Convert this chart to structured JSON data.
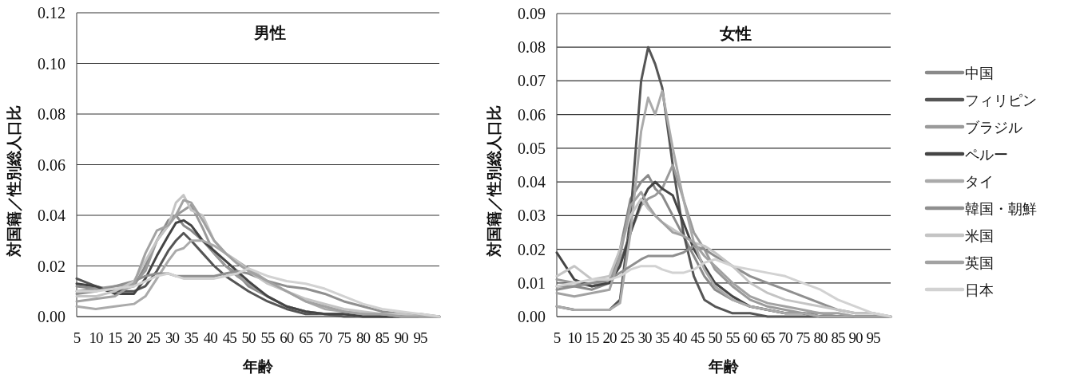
{
  "chart_data": [
    {
      "type": "line",
      "title": "男性",
      "xlabel": "年齢",
      "ylabel": "対国籍／性別総人口比",
      "xlim": [
        5,
        100
      ],
      "xticks": [
        5,
        10,
        15,
        20,
        25,
        30,
        35,
        40,
        45,
        50,
        55,
        60,
        65,
        70,
        75,
        80,
        85,
        90,
        95
      ],
      "ylim": [
        0,
        0.12
      ],
      "yticks": [
        {
          "value": 0,
          "label": "0.00"
        },
        {
          "value": 0.02,
          "label": "0.02"
        },
        {
          "value": 0.04,
          "label": "0.04"
        },
        {
          "value": 0.06,
          "label": "0.06"
        },
        {
          "value": 0.08,
          "label": "0.08"
        },
        {
          "value": 0.1,
          "label": "0.10"
        },
        {
          "value": 0.12,
          "label": "0.12"
        }
      ],
      "grid": "y",
      "legend": false,
      "x": [
        5,
        10,
        15,
        20,
        23,
        26,
        29,
        31,
        33,
        35,
        38,
        41,
        44,
        47,
        50,
        55,
        60,
        65,
        70,
        75,
        80,
        85,
        90,
        95,
        100
      ],
      "series": [
        {
          "color": "#8a8a8a",
          "values": [
            0.012,
            0.011,
            0.01,
            0.012,
            0.02,
            0.03,
            0.038,
            0.04,
            0.036,
            0.034,
            0.03,
            0.025,
            0.02,
            0.017,
            0.012,
            0.008,
            0.004,
            0.002,
            0.001,
            0.001,
            0.001,
            0,
            0,
            0,
            0
          ]
        },
        {
          "color": "#555555",
          "values": [
            0.015,
            0.012,
            0.01,
            0.01,
            0.012,
            0.018,
            0.026,
            0.03,
            0.033,
            0.03,
            0.025,
            0.02,
            0.016,
            0.013,
            0.01,
            0.006,
            0.003,
            0.001,
            0.001,
            0,
            0,
            0,
            0,
            0,
            0
          ]
        },
        {
          "color": "#9a9a9a",
          "values": [
            0.01,
            0.011,
            0.012,
            0.013,
            0.018,
            0.03,
            0.036,
            0.04,
            0.042,
            0.044,
            0.035,
            0.025,
            0.02,
            0.016,
            0.013,
            0.008,
            0.004,
            0.002,
            0.001,
            0.001,
            0,
            0,
            0,
            0,
            0
          ]
        },
        {
          "color": "#444444",
          "values": [
            0.013,
            0.012,
            0.009,
            0.009,
            0.015,
            0.024,
            0.032,
            0.037,
            0.038,
            0.036,
            0.03,
            0.026,
            0.022,
            0.018,
            0.014,
            0.008,
            0.004,
            0.002,
            0.001,
            0.001,
            0,
            0,
            0,
            0,
            0
          ]
        },
        {
          "color": "#aaaaaa",
          "values": [
            0.004,
            0.003,
            0.004,
            0.005,
            0.008,
            0.015,
            0.022,
            0.026,
            0.027,
            0.03,
            0.03,
            0.028,
            0.025,
            0.022,
            0.019,
            0.014,
            0.01,
            0.006,
            0.003,
            0.002,
            0.001,
            0.001,
            0,
            0,
            0
          ]
        },
        {
          "color": "#8f8f8f",
          "values": [
            0.009,
            0.01,
            0.012,
            0.014,
            0.016,
            0.017,
            0.017,
            0.016,
            0.016,
            0.016,
            0.016,
            0.016,
            0.017,
            0.018,
            0.017,
            0.014,
            0.012,
            0.011,
            0.009,
            0.006,
            0.004,
            0.002,
            0.001,
            0.001,
            0
          ]
        },
        {
          "color": "#c4c4c4",
          "values": [
            0.008,
            0.008,
            0.01,
            0.014,
            0.022,
            0.03,
            0.036,
            0.045,
            0.048,
            0.042,
            0.04,
            0.03,
            0.025,
            0.022,
            0.018,
            0.013,
            0.01,
            0.007,
            0.005,
            0.003,
            0.002,
            0.001,
            0.001,
            0,
            0
          ]
        },
        {
          "color": "#a2a2a2",
          "values": [
            0.006,
            0.007,
            0.008,
            0.013,
            0.025,
            0.034,
            0.036,
            0.04,
            0.046,
            0.045,
            0.038,
            0.03,
            0.025,
            0.021,
            0.018,
            0.014,
            0.01,
            0.006,
            0.004,
            0.002,
            0.001,
            0.001,
            0,
            0,
            0
          ]
        },
        {
          "color": "#d2d2d2",
          "values": [
            0.01,
            0.01,
            0.011,
            0.012,
            0.014,
            0.016,
            0.017,
            0.016,
            0.015,
            0.015,
            0.015,
            0.015,
            0.016,
            0.017,
            0.019,
            0.016,
            0.014,
            0.013,
            0.011,
            0.008,
            0.005,
            0.003,
            0.002,
            0.001,
            0
          ]
        }
      ]
    },
    {
      "type": "line",
      "title": "女性",
      "xlabel": "年齢",
      "ylabel": "対国籍／性別総人口比",
      "xlim": [
        5,
        100
      ],
      "xticks": [
        5,
        10,
        15,
        20,
        25,
        30,
        35,
        40,
        45,
        50,
        55,
        60,
        65,
        70,
        75,
        80,
        85,
        90,
        95
      ],
      "ylim": [
        0,
        0.09
      ],
      "yticks": [
        {
          "value": 0,
          "label": "0.00"
        },
        {
          "value": 0.01,
          "label": "0.01"
        },
        {
          "value": 0.02,
          "label": "0.02"
        },
        {
          "value": 0.03,
          "label": "0.03"
        },
        {
          "value": 0.04,
          "label": "0.04"
        },
        {
          "value": 0.05,
          "label": "0.05"
        },
        {
          "value": 0.06,
          "label": "0.06"
        },
        {
          "value": 0.07,
          "label": "0.07"
        },
        {
          "value": 0.08,
          "label": "0.08"
        },
        {
          "value": 0.09,
          "label": "0.09"
        }
      ],
      "grid": "y",
      "legend": "right",
      "x": [
        5,
        10,
        15,
        20,
        23,
        26,
        29,
        31,
        33,
        35,
        38,
        41,
        44,
        47,
        50,
        55,
        60,
        65,
        70,
        75,
        80,
        85,
        90,
        95,
        100
      ],
      "series": [
        {
          "name": "中国",
          "color": "#8a8a8a",
          "values": [
            0.009,
            0.009,
            0.008,
            0.01,
            0.02,
            0.035,
            0.04,
            0.042,
            0.038,
            0.036,
            0.03,
            0.024,
            0.018,
            0.012,
            0.008,
            0.005,
            0.003,
            0.002,
            0.001,
            0.001,
            0,
            0,
            0,
            0,
            0
          ]
        },
        {
          "name": "フィリピン",
          "color": "#555555",
          "values": [
            0.003,
            0.002,
            0.002,
            0.002,
            0.005,
            0.03,
            0.07,
            0.08,
            0.075,
            0.068,
            0.045,
            0.025,
            0.012,
            0.005,
            0.003,
            0.001,
            0.001,
            0,
            0,
            0,
            0,
            0,
            0,
            0,
            0
          ]
        },
        {
          "name": "ブラジル",
          "color": "#9a9a9a",
          "values": [
            0.011,
            0.01,
            0.009,
            0.011,
            0.016,
            0.025,
            0.033,
            0.035,
            0.036,
            0.038,
            0.045,
            0.035,
            0.025,
            0.02,
            0.014,
            0.009,
            0.005,
            0.003,
            0.002,
            0.001,
            0.001,
            0,
            0,
            0,
            0
          ]
        },
        {
          "name": "ペルー",
          "color": "#444444",
          "values": [
            0.019,
            0.011,
            0.009,
            0.01,
            0.015,
            0.025,
            0.034,
            0.038,
            0.04,
            0.038,
            0.036,
            0.028,
            0.02,
            0.015,
            0.01,
            0.006,
            0.003,
            0.002,
            0.001,
            0.001,
            0,
            0,
            0,
            0,
            0
          ]
        },
        {
          "name": "タイ",
          "color": "#aaaaaa",
          "values": [
            0.003,
            0.002,
            0.002,
            0.002,
            0.004,
            0.025,
            0.055,
            0.065,
            0.06,
            0.067,
            0.05,
            0.035,
            0.022,
            0.014,
            0.009,
            0.005,
            0.003,
            0.002,
            0.001,
            0.001,
            0,
            0,
            0,
            0,
            0
          ]
        },
        {
          "name": "韓国・朝鮮",
          "color": "#8f8f8f",
          "values": [
            0.008,
            0.009,
            0.01,
            0.011,
            0.013,
            0.015,
            0.017,
            0.018,
            0.018,
            0.018,
            0.018,
            0.019,
            0.021,
            0.02,
            0.018,
            0.015,
            0.012,
            0.01,
            0.008,
            0.006,
            0.004,
            0.002,
            0.001,
            0.001,
            0
          ]
        },
        {
          "name": "米国",
          "color": "#c4c4c4",
          "values": [
            0.012,
            0.015,
            0.011,
            0.012,
            0.02,
            0.03,
            0.035,
            0.032,
            0.03,
            0.028,
            0.026,
            0.024,
            0.022,
            0.021,
            0.019,
            0.015,
            0.01,
            0.007,
            0.005,
            0.004,
            0.003,
            0.002,
            0.001,
            0.001,
            0
          ]
        },
        {
          "name": "英国",
          "color": "#a2a2a2",
          "values": [
            0.007,
            0.006,
            0.007,
            0.008,
            0.018,
            0.033,
            0.037,
            0.033,
            0.03,
            0.028,
            0.025,
            0.024,
            0.022,
            0.018,
            0.015,
            0.01,
            0.006,
            0.004,
            0.003,
            0.002,
            0.001,
            0.001,
            0,
            0,
            0
          ]
        },
        {
          "name": "日本",
          "color": "#d2d2d2",
          "values": [
            0.009,
            0.01,
            0.011,
            0.011,
            0.012,
            0.014,
            0.015,
            0.015,
            0.015,
            0.014,
            0.013,
            0.013,
            0.014,
            0.016,
            0.017,
            0.015,
            0.014,
            0.013,
            0.012,
            0.01,
            0.008,
            0.005,
            0.003,
            0.001,
            0
          ]
        }
      ]
    }
  ]
}
